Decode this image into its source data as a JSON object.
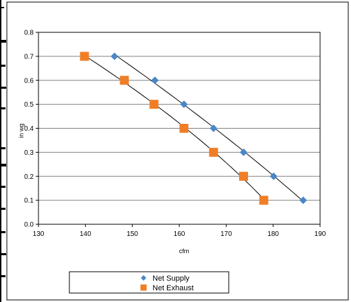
{
  "chart_data": {
    "type": "scatter",
    "xlabel": "cfm",
    "ylabel": "in wg",
    "xlim": [
      130,
      190
    ],
    "ylim": [
      0.0,
      0.8
    ],
    "x_ticks": [
      "130",
      "140",
      "150",
      "160",
      "170",
      "180",
      "190"
    ],
    "y_ticks": [
      "0.0",
      "0.1",
      "0.2",
      "0.3",
      "0.4",
      "0.5",
      "0.6",
      "0.7",
      "0.8"
    ],
    "grid": "horizontal",
    "legend_position": "bottom",
    "trendlines": true,
    "series": [
      {
        "name": "Net Supply",
        "marker": "diamond",
        "color": "#4A86C8",
        "points": [
          {
            "x": 146.2,
            "y": 0.7
          },
          {
            "x": 154.8,
            "y": 0.6
          },
          {
            "x": 161.0,
            "y": 0.5
          },
          {
            "x": 167.3,
            "y": 0.4
          },
          {
            "x": 173.7,
            "y": 0.3
          },
          {
            "x": 180.1,
            "y": 0.2
          },
          {
            "x": 186.4,
            "y": 0.1
          }
        ]
      },
      {
        "name": "Net Exhaust",
        "marker": "square",
        "color": "#F07E26",
        "points": [
          {
            "x": 139.8,
            "y": 0.7
          },
          {
            "x": 148.3,
            "y": 0.6
          },
          {
            "x": 154.6,
            "y": 0.5
          },
          {
            "x": 161.0,
            "y": 0.4
          },
          {
            "x": 167.3,
            "y": 0.3
          },
          {
            "x": 173.7,
            "y": 0.2
          },
          {
            "x": 178.0,
            "y": 0.1
          }
        ]
      }
    ]
  }
}
